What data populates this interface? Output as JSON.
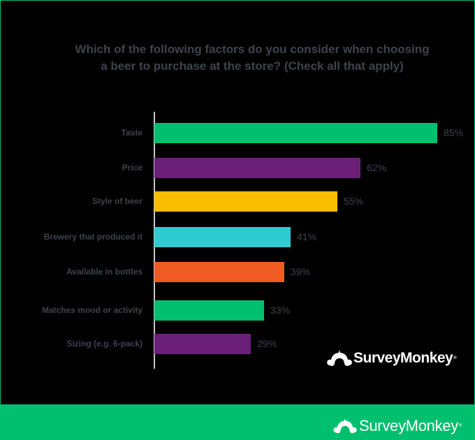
{
  "title_line1": "Which of the following factors do you consider when choosing",
  "title_line2": "a beer to purchase at the store? (Check all that apply)",
  "brand": {
    "name": "SurveyMonkey",
    "reg": "®",
    "footer_color": "#00bf6f"
  },
  "chart_data": {
    "type": "bar",
    "orientation": "horizontal",
    "title": "Which of the following factors do you consider when choosing a beer to purchase at the store? (Check all that apply)",
    "xlabel": "",
    "ylabel": "",
    "xlim": [
      0,
      100
    ],
    "grid": false,
    "legend": null,
    "categories": [
      "Taste",
      "Price",
      "Style of beer",
      "Brewery that produced it",
      "Available in bottles",
      "Matches mood or activity",
      "Sizing (e.g. 6-pack)"
    ],
    "values": [
      85,
      62,
      55,
      41,
      39,
      33,
      29
    ],
    "value_labels": [
      "85%",
      "62%",
      "55%",
      "41%",
      "39%",
      "33%",
      "29%"
    ],
    "colors": [
      "#00bf6f",
      "#6b1f78",
      "#f9be00",
      "#2dccd3",
      "#f05b24",
      "#00bf6f",
      "#6b1f78"
    ]
  }
}
